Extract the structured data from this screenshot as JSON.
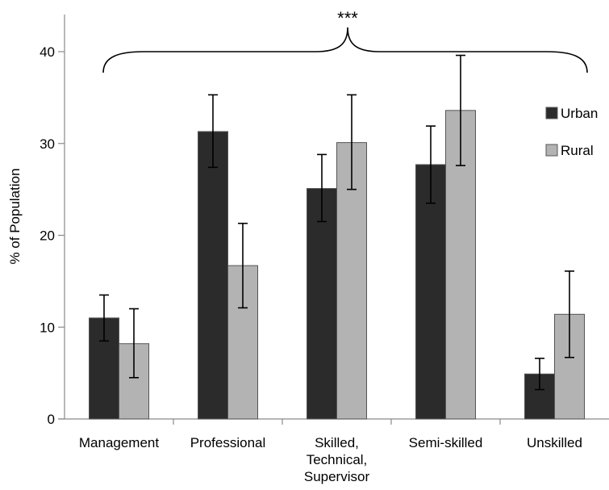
{
  "chart_data": {
    "type": "bar",
    "ylabel": "% of Population",
    "ylim": [
      0,
      40
    ],
    "yticks": [
      0,
      10,
      20,
      30,
      40
    ],
    "categories": [
      [
        "Management"
      ],
      [
        "Professional"
      ],
      [
        "Skilled,",
        "Technical,",
        "Supervisor"
      ],
      [
        "Semi-skilled"
      ],
      [
        "Unskilled"
      ]
    ],
    "series": [
      {
        "name": "Urban",
        "color": "#2b2b2b",
        "values": [
          11.0,
          31.3,
          25.1,
          27.7,
          4.9
        ],
        "error_low": [
          8.5,
          27.4,
          21.5,
          23.5,
          3.2
        ],
        "error_high": [
          13.5,
          35.3,
          28.8,
          31.9,
          6.6
        ]
      },
      {
        "name": "Rural",
        "color": "#b3b3b3",
        "values": [
          8.2,
          16.7,
          30.1,
          33.6,
          11.4
        ],
        "error_low": [
          4.5,
          12.1,
          25.0,
          27.6,
          6.7
        ],
        "error_high": [
          12.0,
          21.3,
          35.3,
          39.6,
          16.1
        ]
      }
    ],
    "legend_position": "right",
    "gridlines": false,
    "annotation": {
      "text": "***",
      "type": "brace",
      "span": "all-categories"
    }
  }
}
